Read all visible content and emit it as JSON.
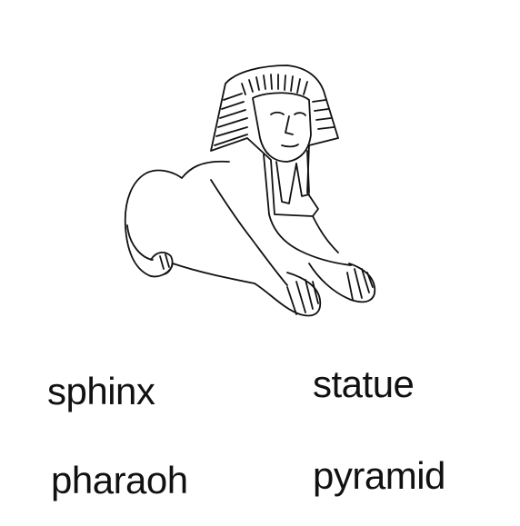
{
  "illustration": {
    "subject_icon": "sphinx-drawing"
  },
  "options": [
    {
      "label": "sphinx"
    },
    {
      "label": "statue"
    },
    {
      "label": "pharaoh"
    },
    {
      "label": "pyramid"
    }
  ]
}
